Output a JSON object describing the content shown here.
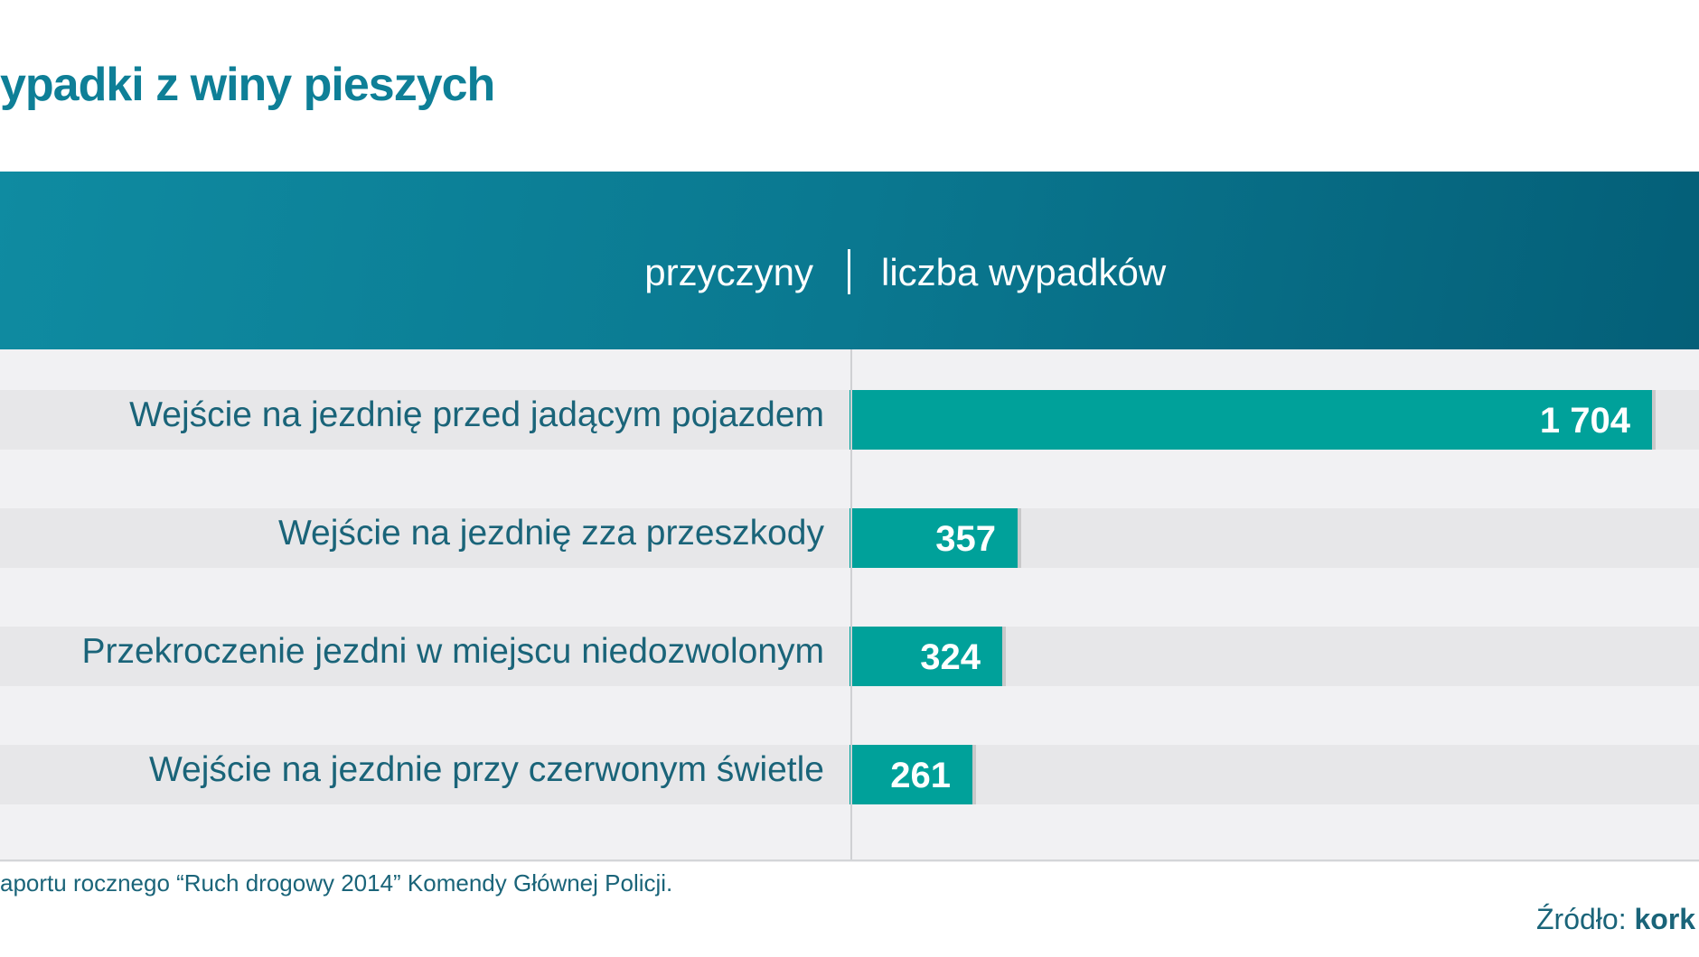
{
  "title": "ypadki z winy pieszych",
  "header": {
    "left_label": "przyczyny",
    "right_label": "liczba wypadków"
  },
  "footer": {
    "note": "aportu rocznego “Ruch drogowy 2014”  Komendy Głównej Policji.",
    "source_prefix": "Źródło:",
    "source_name": "kork"
  },
  "colors": {
    "title": "#0e7f97",
    "header_band": "#0a7890",
    "bar": "#00a19a",
    "label_text": "#1a6479"
  },
  "chart_data": {
    "type": "bar",
    "orientation": "horizontal",
    "title": "ypadki z winy pieszych",
    "xlabel": "liczba wypadków",
    "ylabel": "przyczyny",
    "categories": [
      "Wejście na jezdnię przed jadącym pojazdem",
      "Wejście na jezdnię zza przeszkody",
      "Przekroczenie jezdni w miejscu niedozwolonym",
      "Wejście na jezdnie przy czerwonym świetle"
    ],
    "values": [
      1704,
      357,
      324,
      261
    ],
    "value_labels": [
      "1 704",
      "357",
      "324",
      "261"
    ],
    "xlim": [
      0,
      1704
    ],
    "grid": false,
    "legend": "none"
  }
}
